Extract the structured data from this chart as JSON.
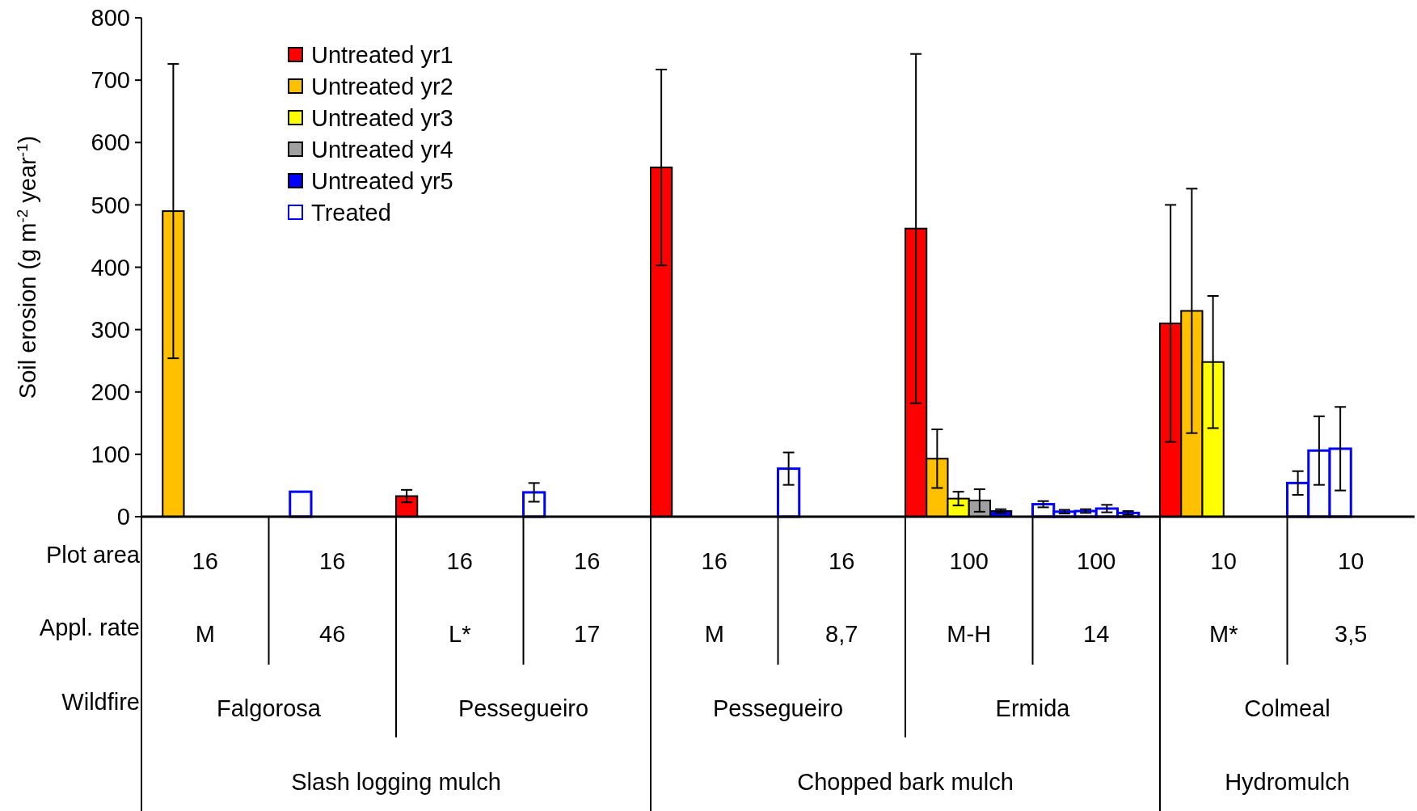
{
  "chart_data": {
    "type": "bar",
    "ylabel": "Soil erosion (g m$^{-2}$ year$^{-1}$)",
    "categories": [
      "M",
      "46",
      "L*",
      "17",
      "M",
      "8,7",
      "M-H",
      "14",
      "M*",
      "3,5"
    ],
    "ylim": [
      0,
      800
    ],
    "yticks": [
      0,
      100,
      200,
      300,
      400,
      500,
      600,
      700,
      800
    ],
    "grid": false,
    "legend": "top left",
    "series": [
      {
        "name": "Untreated yr1",
        "color": "#ff0000",
        "values": [
          null,
          null,
          33,
          null,
          560,
          null,
          462,
          null,
          310,
          null
        ],
        "errors": [
          null,
          null,
          10,
          null,
          157,
          null,
          280,
          null,
          190,
          null
        ]
      },
      {
        "name": "Untreated yr2",
        "color": "#ffc000",
        "values": [
          490,
          null,
          null,
          null,
          null,
          null,
          93,
          null,
          330,
          null
        ],
        "errors": [
          236,
          null,
          null,
          null,
          null,
          null,
          47,
          null,
          196,
          null
        ]
      },
      {
        "name": "Untreated yr3",
        "color": "#ffff00",
        "values": [
          null,
          null,
          null,
          null,
          null,
          null,
          29,
          null,
          248,
          null
        ],
        "errors": [
          null,
          null,
          null,
          null,
          null,
          null,
          11,
          null,
          106,
          null
        ]
      },
      {
        "name": "Untreated yr4",
        "color": "#a0a0a0",
        "values": [
          null,
          null,
          null,
          null,
          null,
          null,
          26,
          null,
          null,
          null
        ],
        "errors": [
          null,
          null,
          null,
          null,
          null,
          null,
          18,
          null,
          null,
          null
        ]
      },
      {
        "name": "Untreated yr5",
        "color": "#0000ff",
        "values": [
          null,
          null,
          null,
          null,
          null,
          null,
          9,
          null,
          null,
          null
        ],
        "errors": [
          null,
          null,
          null,
          null,
          null,
          null,
          3,
          null,
          null,
          null
        ]
      },
      {
        "name": "Treated",
        "color": "#0000ff",
        "values": [
          null,
          null,
          null,
          39,
          null,
          77,
          null,
          20,
          null,
          54
        ],
        "errors": [
          null,
          null,
          null,
          15,
          null,
          26,
          null,
          5,
          null,
          19
        ]
      },
      {
        "color": "#0000ff",
        "values": [
          null,
          40,
          null,
          null,
          null,
          null,
          null,
          8,
          null,
          106
        ],
        "errors": [
          null,
          null,
          null,
          null,
          null,
          null,
          null,
          3,
          null,
          55
        ]
      },
      {
        "color": "#0000ff",
        "values": [
          null,
          null,
          null,
          null,
          null,
          null,
          null,
          9,
          null,
          109
        ],
        "errors": [
          null,
          null,
          null,
          null,
          null,
          null,
          null,
          3,
          null,
          67
        ]
      },
      {
        "color": "#0000ff",
        "values": [
          null,
          null,
          null,
          null,
          null,
          null,
          null,
          13,
          null,
          null
        ],
        "errors": [
          null,
          null,
          null,
          null,
          null,
          null,
          null,
          6,
          null,
          null
        ]
      },
      {
        "color": "#0000ff",
        "values": [
          null,
          null,
          null,
          null,
          null,
          null,
          null,
          6,
          null,
          null
        ],
        "errors": [
          null,
          null,
          null,
          null,
          null,
          null,
          null,
          3,
          null,
          null
        ]
      }
    ],
    "annotations": [
      "Plot area",
      "Appl. rate",
      "Wildfire",
      "16",
      "16",
      "16",
      "16",
      "16",
      "16",
      "100",
      "100",
      "10",
      "10",
      "Falgorosa",
      "Pessegueiro",
      "Pessegueiro",
      "Ermida",
      "Colmeal",
      "Slash logging mulch",
      "Chopped bark mulch",
      "Hydromulch"
    ]
  }
}
